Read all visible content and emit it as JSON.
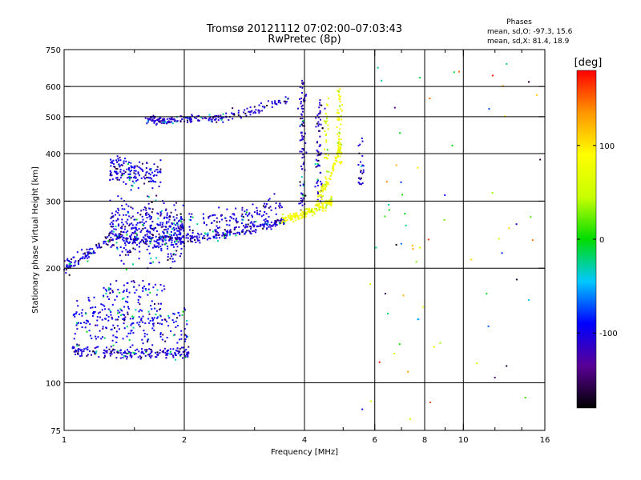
{
  "chart_data": {
    "type": "scatter",
    "title": "Tromsø 20121112 07:02:00–07:03:43",
    "subtitle": "RwPretec (8p)",
    "xlabel": "Frequency [MHz]",
    "ylabel": "Stationary phase Virtual Height [km]",
    "x_scale": "log",
    "y_scale": "log",
    "xlim": [
      1,
      16
    ],
    "ylim": [
      75,
      750
    ],
    "x_ticks": [
      1,
      2,
      4,
      6,
      8,
      10,
      16
    ],
    "x_tick_labels": [
      "1",
      "2",
      "4",
      "6",
      "8",
      "10",
      "16"
    ],
    "x_minor_ticks": [
      1.5,
      3,
      5,
      7,
      9,
      12,
      14
    ],
    "y_ticks": [
      75,
      100,
      200,
      300,
      400,
      500,
      600,
      750
    ],
    "y_tick_labels": [
      "75",
      "100",
      "200",
      "300",
      "400",
      "500",
      "600",
      "750"
    ],
    "x_grid": [
      2,
      4,
      6,
      8,
      10
    ],
    "y_grid": [
      100,
      200,
      300,
      400,
      500,
      600
    ],
    "grid": true,
    "stats": {
      "heading": "Phases",
      "line_o": "mean, sd,O: -97.3, 15.6",
      "line_x": "mean, sd,X:  81.4, 18.9"
    },
    "colorbar": {
      "label": "[deg]",
      "min": -180,
      "max": 180,
      "ticks": [
        100,
        0,
        -100
      ],
      "tick_labels": [
        "100",
        "0",
        "-100"
      ],
      "colors": [
        "#000000",
        "#5a0096",
        "#0000ff",
        "#00c8ff",
        "#00dc00",
        "#c8ff00",
        "#ffff00",
        "#ff9600",
        "#ff0000"
      ]
    },
    "series": [
      {
        "kind": "band",
        "phase": -105,
        "xs": [
          1.35,
          3.6
        ],
        "y0": 240,
        "y1": 228,
        "y2": 268,
        "spread": 8,
        "n": 320
      },
      {
        "kind": "band",
        "phase": -100,
        "xs": [
          1.3,
          2.0
        ],
        "y0": 260,
        "y1": 250,
        "y2": 250,
        "spread": 45,
        "n": 380
      },
      {
        "kind": "band",
        "phase": -102,
        "xs": [
          1.8,
          3.6
        ],
        "y0": 260,
        "y1": 262,
        "y2": 292,
        "spread": 18,
        "n": 150
      },
      {
        "kind": "band",
        "phase": -100,
        "xs": [
          1.3,
          1.75
        ],
        "y0": 370,
        "y1": 350,
        "y2": 350,
        "spread": 30,
        "n": 160
      },
      {
        "kind": "band",
        "phase": -110,
        "xs": [
          1.6,
          2.1
        ],
        "y0": 490,
        "y1": 488,
        "y2": 492,
        "spread": 12,
        "n": 110
      },
      {
        "kind": "band",
        "phase": -108,
        "xs": [
          2.1,
          3.7
        ],
        "y0": 490,
        "y1": 500,
        "y2": 560,
        "spread": 14,
        "n": 110
      },
      {
        "kind": "band",
        "phase": -100,
        "xs": [
          1.0,
          1.3
        ],
        "y0": 200,
        "y1": 215,
        "y2": 240,
        "spread": 10,
        "n": 90
      },
      {
        "kind": "band",
        "phase": -105,
        "xs": [
          1.05,
          2.05
        ],
        "y0": 122,
        "y1": 118,
        "y2": 120,
        "spread": 4,
        "n": 200
      },
      {
        "kind": "band",
        "phase": -95,
        "xs": [
          1.05,
          2.05
        ],
        "y0": 150,
        "y1": 145,
        "y2": 140,
        "spread": 22,
        "n": 260
      },
      {
        "kind": "band",
        "phase": -100,
        "xs": [
          1.25,
          1.8
        ],
        "y0": 175,
        "y1": 180,
        "y2": 175,
        "spread": 10,
        "n": 60
      },
      {
        "kind": "vband",
        "phase": -110,
        "x": 3.95,
        "xw": 0.08,
        "ys": [
          280,
          640
        ],
        "n": 90
      },
      {
        "kind": "vband",
        "phase": -108,
        "x": 4.35,
        "xw": 0.1,
        "ys": [
          290,
          560
        ],
        "n": 70
      },
      {
        "kind": "vband",
        "phase": -105,
        "x": 5.55,
        "xw": 0.1,
        "ys": [
          330,
          440
        ],
        "n": 25
      },
      {
        "kind": "band",
        "phase": 85,
        "xs": [
          3.5,
          4.7
        ],
        "y0": 268,
        "y1": 275,
        "y2": 300,
        "spread": 8,
        "n": 150
      },
      {
        "kind": "band",
        "phase": 80,
        "xs": [
          4.3,
          4.95
        ],
        "y0": 300,
        "y1": 340,
        "y2": 420,
        "spread": 14,
        "n": 90
      },
      {
        "kind": "vband",
        "phase": 82,
        "x": 4.9,
        "xw": 0.07,
        "ys": [
          370,
          600
        ],
        "n": 60
      },
      {
        "kind": "vband",
        "phase": 75,
        "x": 4.55,
        "xw": 0.08,
        "ys": [
          380,
          560
        ],
        "n": 25
      },
      {
        "kind": "noise",
        "n": 70
      }
    ]
  }
}
